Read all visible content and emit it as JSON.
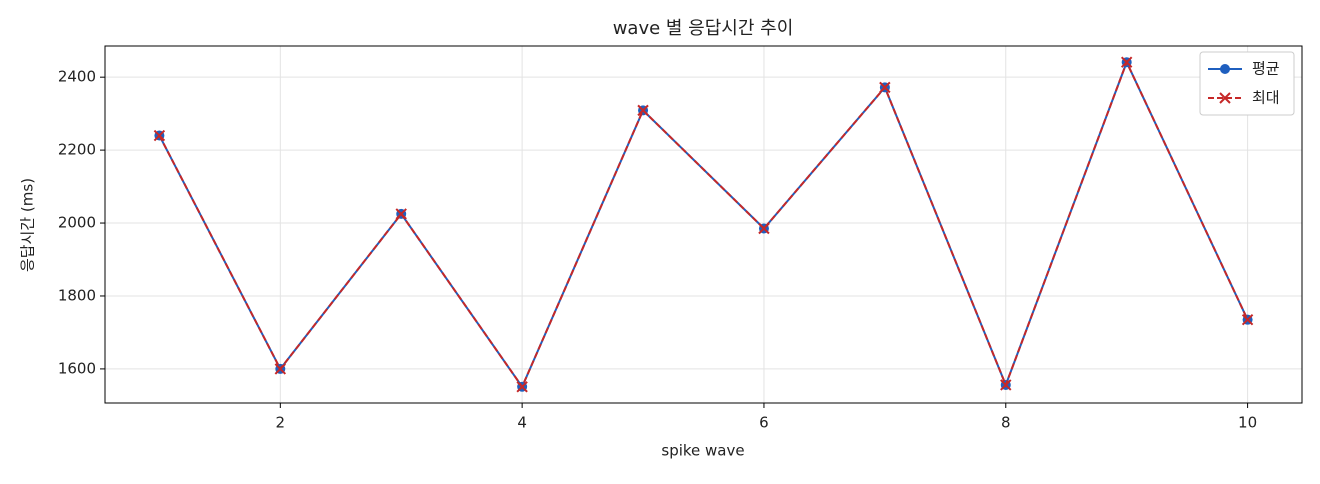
{
  "chart_data": {
    "type": "line",
    "title": "wave 별 응답시간 추이",
    "xlabel": "spike wave",
    "ylabel": "응답시간 (ms)",
    "x": [
      1,
      2,
      3,
      4,
      5,
      6,
      7,
      8,
      9,
      10
    ],
    "series": [
      {
        "name": "평균",
        "color": "#1f5fbf",
        "marker": "o",
        "linestyle": "solid",
        "values": [
          2240,
          1600,
          2025,
          1551,
          2309,
          1985,
          2372,
          1556,
          2441,
          1735
        ]
      },
      {
        "name": "최대",
        "color": "#c62828",
        "marker": "x",
        "linestyle": "dashed",
        "values": [
          2240,
          1600,
          2025,
          1551,
          2309,
          1985,
          2372,
          1556,
          2441,
          1735
        ]
      }
    ],
    "xlim": [
      0.55,
      10.45
    ],
    "xticks": [
      2,
      4,
      6,
      8,
      10
    ],
    "ylim": [
      1506.5,
      2485.5
    ],
    "yticks": [
      1600,
      1800,
      2000,
      2200,
      2400
    ],
    "grid": true,
    "legend": "upper right"
  }
}
